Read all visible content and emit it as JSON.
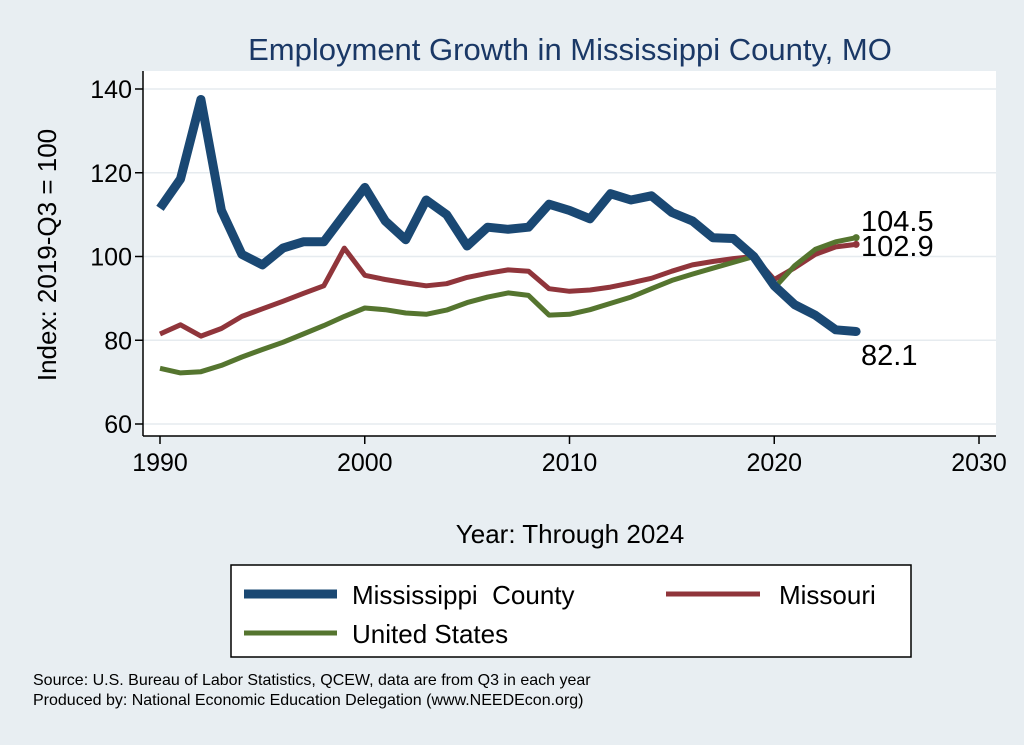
{
  "chart_data": {
    "type": "line",
    "title": "Employment Growth in Mississippi County, MO",
    "xlabel": "Year: Through 2024",
    "ylabel": "Index: 2019-Q3 = 100",
    "xlim": [
      1990,
      2030
    ],
    "ylim": [
      60,
      140
    ],
    "xticks": [
      1990,
      2000,
      2010,
      2020,
      2030
    ],
    "yticks": [
      60,
      80,
      100,
      120,
      140
    ],
    "grid": true,
    "legend_position": "bottom",
    "x": [
      1990,
      1991,
      1992,
      1993,
      1994,
      1995,
      1996,
      1997,
      1998,
      1999,
      2000,
      2001,
      2002,
      2003,
      2004,
      2005,
      2006,
      2007,
      2008,
      2009,
      2010,
      2011,
      2012,
      2013,
      2014,
      2015,
      2016,
      2017,
      2018,
      2019,
      2020,
      2021,
      2022,
      2023,
      2024
    ],
    "series": [
      {
        "name": "Mississippi  County",
        "color": "#1a4873",
        "end_label": "82.1",
        "values": [
          111.5,
          118.5,
          137.5,
          111,
          100.5,
          98,
          102,
          103.5,
          103.5,
          110,
          116.5,
          108.5,
          104,
          113.5,
          110,
          102.5,
          107,
          106.5,
          107,
          112.5,
          111,
          109,
          115,
          113.5,
          114.5,
          110.5,
          108.5,
          104.5,
          104.3,
          100,
          93,
          88.5,
          86,
          82.5,
          82.1
        ]
      },
      {
        "name": "Missouri",
        "color": "#90353b",
        "end_label": "102.9",
        "values": [
          81.5,
          83.7,
          81,
          82.8,
          85.7,
          87.5,
          89.3,
          91.2,
          93,
          102,
          95.5,
          94.5,
          93.7,
          93,
          93.5,
          95,
          96,
          96.8,
          96.5,
          92.3,
          91.7,
          92,
          92.7,
          93.7,
          94.8,
          96.5,
          98,
          98.8,
          99.5,
          100,
          94.5,
          97.3,
          100.5,
          102.3,
          102.9
        ]
      },
      {
        "name": "United States",
        "color": "#55752f",
        "end_label": "104.5",
        "values": [
          73.3,
          72.2,
          72.5,
          74,
          76,
          77.8,
          79.5,
          81.5,
          83.5,
          85.7,
          87.7,
          87.3,
          86.5,
          86.2,
          87.2,
          89,
          90.3,
          91.3,
          90.7,
          86,
          86.2,
          87.3,
          88.8,
          90.3,
          92.3,
          94.3,
          95.8,
          97.2,
          98.6,
          100,
          92.5,
          97.8,
          101.7,
          103.5,
          104.5
        ]
      }
    ]
  },
  "legend": {
    "items": [
      "Mississippi  County",
      "Missouri",
      "United States"
    ]
  },
  "source": {
    "line1": "Source: U.S. Bureau of Labor Statistics, QCEW, data are from Q3 in each year",
    "line2": "Produced by: National Economic Education Delegation (www.NEEDEcon.org)"
  }
}
